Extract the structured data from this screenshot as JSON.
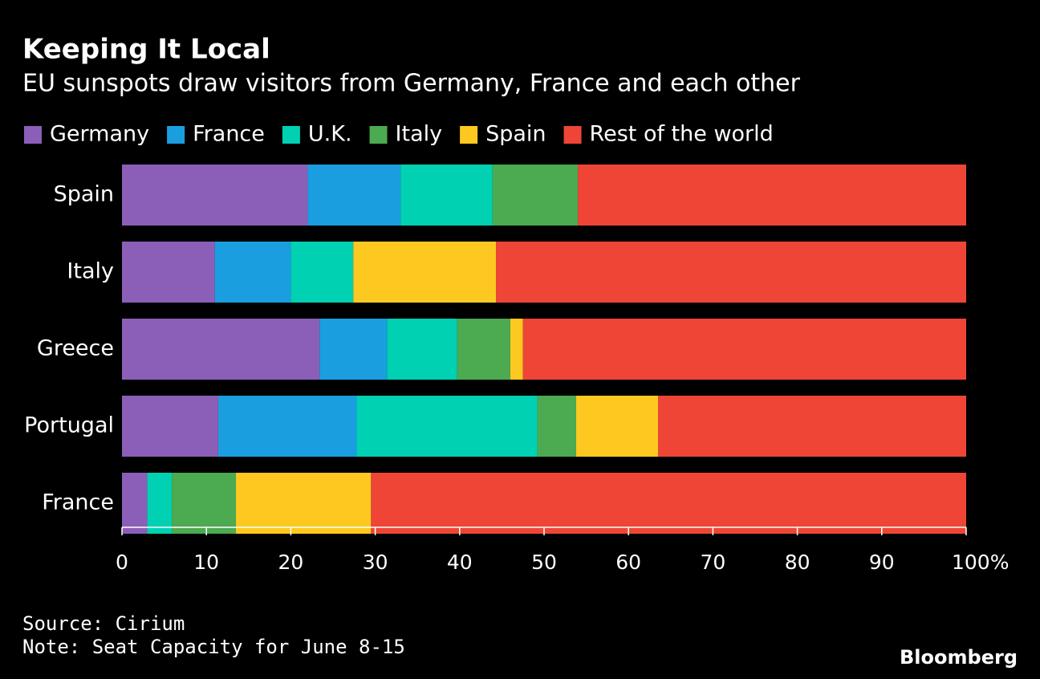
{
  "chart_data": {
    "type": "stacked_barh",
    "title": "Keeping It Local",
    "subtitle": "EU sunspots draw visitors from Germany, France and each other",
    "categories": [
      "Spain",
      "Italy",
      "Greece",
      "Portugal",
      "France"
    ],
    "series": [
      {
        "name": "Germany",
        "color": "#8b5fb7",
        "values": [
          22,
          11,
          23.4,
          11.4,
          3
        ]
      },
      {
        "name": "France",
        "color": "#1a9ee0",
        "values": [
          11,
          9,
          8,
          16.4,
          null
        ]
      },
      {
        "name": "U.K.",
        "color": "#00d1b2",
        "values": [
          10.9,
          7.4,
          8.3,
          21.4,
          2.9
        ]
      },
      {
        "name": "Italy",
        "color": "#4caa50",
        "values": [
          10.1,
          null,
          6.3,
          4.6,
          7.6
        ]
      },
      {
        "name": "Spain",
        "color": "#fdc920",
        "values": [
          null,
          16.9,
          1.5,
          9.7,
          16
        ]
      },
      {
        "name": "Rest of the world",
        "color": "#ef4536",
        "values": [
          46,
          55.7,
          52.5,
          36.5,
          70.5
        ]
      }
    ],
    "xlim": [
      0,
      100
    ],
    "xticks": [
      0,
      10,
      20,
      30,
      40,
      50,
      60,
      70,
      80,
      90,
      {
        "value": 100,
        "label": "100%"
      }
    ],
    "source": "Source: Cirium",
    "note": "Note: Seat Capacity for June 8-15",
    "brand": "Bloomberg"
  }
}
